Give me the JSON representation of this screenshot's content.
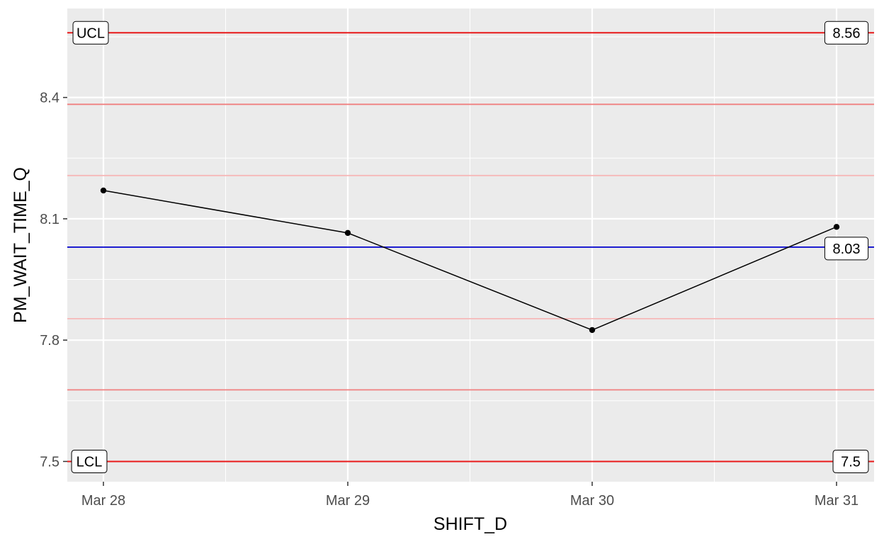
{
  "chart_data": {
    "type": "line",
    "title": "",
    "xlabel": "SHIFT_D",
    "ylabel": "PM_WAIT_TIME_Q",
    "categories": [
      "Mar 28",
      "Mar 29",
      "Mar 30",
      "Mar 31"
    ],
    "values": [
      8.17,
      8.065,
      7.825,
      8.08
    ],
    "ylim": [
      7.45,
      8.62
    ],
    "y_ticks": [
      "7.5",
      "7.8",
      "8.1",
      "8.4"
    ],
    "grid": true,
    "legend": "none",
    "center_line": {
      "value": 8.03,
      "label": "8.03"
    },
    "ucl": {
      "value": 8.56,
      "label": "8.56",
      "name": "UCL"
    },
    "lcl": {
      "value": 7.5,
      "label": "7.5",
      "name": "LCL"
    },
    "sigma_lines": [
      {
        "value": 8.383,
        "level": "2-sigma"
      },
      {
        "value": 7.677,
        "level": "2-sigma"
      },
      {
        "value": 8.207,
        "level": "1-sigma"
      },
      {
        "value": 7.853,
        "level": "1-sigma"
      }
    ],
    "colors": {
      "panel": "#ebebeb",
      "grid": "#ffffff",
      "series": "#000000",
      "center": "#0000cc",
      "limit": "#e8191a",
      "sigma2": "#f08080",
      "sigma1": "#f6b8b8"
    }
  }
}
